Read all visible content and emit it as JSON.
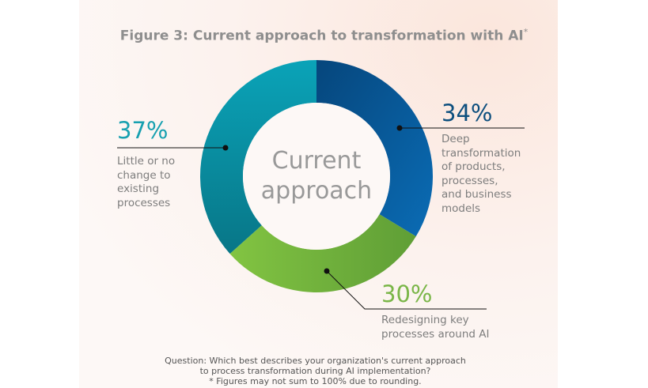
{
  "chart_data": {
    "type": "pie",
    "variant": "donut",
    "title": "Figure 3: Current approach to transformation with AI",
    "title_marker": "*",
    "center_label": [
      "Current",
      "approach"
    ],
    "slices": [
      {
        "label": "Deep transformation of products, processes, and business models",
        "label_lines": [
          "Deep",
          "transformation",
          "of products,",
          "processes,",
          "and business",
          "models"
        ],
        "value": 34,
        "display": "34%",
        "color": "#0a5d97"
      },
      {
        "label": "Redesigning key processes around AI",
        "label_lines": [
          "Redesigning key",
          "processes around AI"
        ],
        "value": 30,
        "display": "30%",
        "color": "#7dbd43"
      },
      {
        "label": "Little or no change to existing processes",
        "label_lines": [
          "Little or no",
          "change to",
          "existing",
          "processes"
        ],
        "value": 37,
        "display": "37%",
        "color": "#0a9db3"
      }
    ],
    "start_angle": "top",
    "direction": "clockwise"
  },
  "footnote": {
    "question_1": "Question: Which best describes your organization's current approach",
    "question_2": "to process transformation during AI implementation?",
    "note": "* Figures may not sum to 100% due to rounding."
  },
  "colors": {
    "pct_blue": "#0d4f7e",
    "pct_green": "#7ab648",
    "pct_teal": "#17a0b0"
  }
}
